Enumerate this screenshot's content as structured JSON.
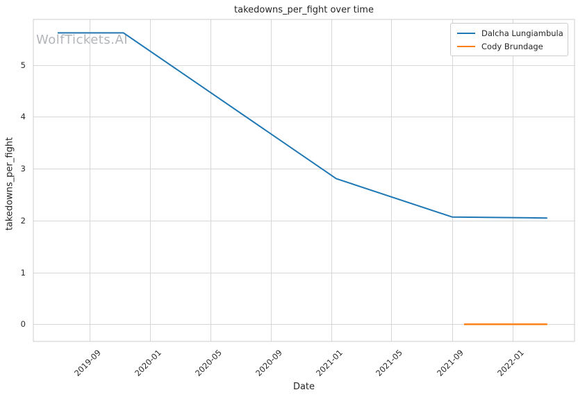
{
  "chart_data": {
    "type": "line",
    "title": "takedowns_per_fight over time",
    "xlabel": "Date",
    "ylabel": "takedowns_per_fight",
    "watermark": "WolfTickets.AI",
    "grid": true,
    "legend_position": "upper right",
    "x_domain": [
      "2019-05-10",
      "2022-05-06"
    ],
    "y_domain": [
      -0.33,
      5.88
    ],
    "x_ticks": [
      {
        "date": "2019-09-01",
        "label": "2019-09"
      },
      {
        "date": "2020-01-01",
        "label": "2020-01"
      },
      {
        "date": "2020-05-01",
        "label": "2020-05"
      },
      {
        "date": "2020-09-01",
        "label": "2020-09"
      },
      {
        "date": "2021-01-01",
        "label": "2021-01"
      },
      {
        "date": "2021-05-01",
        "label": "2021-05"
      },
      {
        "date": "2021-09-01",
        "label": "2021-09"
      },
      {
        "date": "2022-01-01",
        "label": "2022-01"
      }
    ],
    "y_ticks": [
      {
        "value": 0,
        "label": "0"
      },
      {
        "value": 1,
        "label": "1"
      },
      {
        "value": 2,
        "label": "2"
      },
      {
        "value": 3,
        "label": "3"
      },
      {
        "value": 4,
        "label": "4"
      },
      {
        "value": 5,
        "label": "5"
      }
    ],
    "series": [
      {
        "name": "Dalcha Lungiambula",
        "color": "#1f77b4",
        "points": [
          {
            "date": "2019-06-28",
            "value": 5.62
          },
          {
            "date": "2019-11-08",
            "value": 5.62
          },
          {
            "date": "2021-01-10",
            "value": 2.81
          },
          {
            "date": "2021-09-01",
            "value": 2.07
          },
          {
            "date": "2022-03-12",
            "value": 2.05
          }
        ]
      },
      {
        "name": "Cody Brundage",
        "color": "#ff7f0e",
        "points": [
          {
            "date": "2021-09-25",
            "value": 0
          },
          {
            "date": "2022-03-12",
            "value": 0
          }
        ]
      }
    ]
  }
}
